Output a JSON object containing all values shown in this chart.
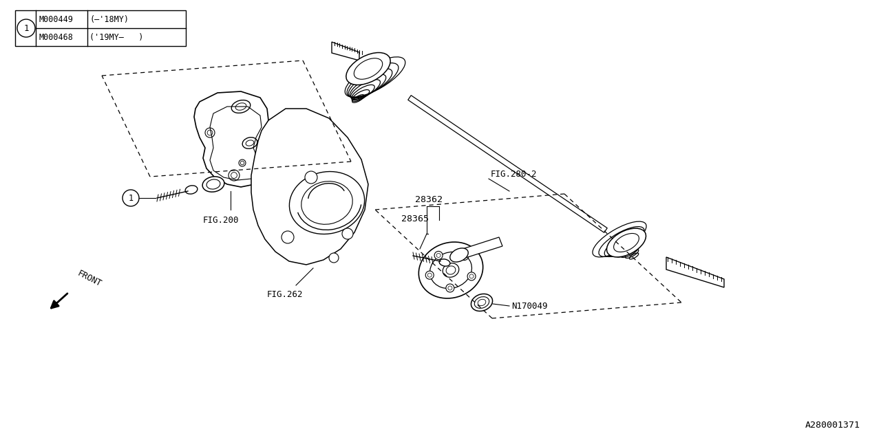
{
  "bg_color": "#ffffff",
  "line_color": "#000000",
  "diagram_id": "A280001371",
  "parts": {
    "part1_row1": "M000449",
    "part1_row1_note": "(—'18MY)",
    "part1_row2": "M000468",
    "part1_row2_note": "('19MY—   )",
    "ref1": "28362",
    "ref2": "28365",
    "ref3": "N170049",
    "fig1": "FIG.200",
    "fig2": "FIG.262",
    "fig3": "FIG.280-2"
  }
}
